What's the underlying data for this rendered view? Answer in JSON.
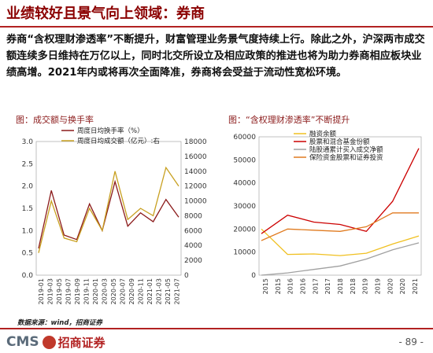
{
  "header": {
    "title": "业绩较好且景气向上领域：券商"
  },
  "body": {
    "text": "券商“含权理财渗透率”不断提升，财富管理业务景气度持续上行。除此之外，沪深两市成交额连续多日维持在万亿以上，同时北交所设立及相应政策的推进也将为助力券商相应板块业绩高增。2021年内或将再次全面降准，券商将会受益于流动性宽松环境。"
  },
  "footer": {
    "source": "数据来源：wind，招商证券",
    "logo_cms": "CMS",
    "logo_cn": "招商证券",
    "page_number": "- 89 -"
  },
  "colors": {
    "title": "#8b0000",
    "rule": "#b22222",
    "dark_red": "#8b1a1a",
    "gold": "#c8a020",
    "red": "#cc0000",
    "orange": "#e07b20",
    "gray": "#a0a0a0",
    "yellow": "#f0c020"
  },
  "chart_data": [
    {
      "type": "line",
      "title": "图：成交额与换手率",
      "x": [
        "2019-01",
        "2019-04",
        "2019-07",
        "2019-10",
        "2020-01",
        "2020-04",
        "2020-07",
        "2020-10",
        "2021-01",
        "2021-04",
        "2021-07",
        "2021-09"
      ],
      "x_ticks": [
        "2019-01",
        "2019-03",
        "2019-05",
        "2019-07",
        "2019-09",
        "2019-11",
        "2020-01",
        "2020-03",
        "2020-05",
        "2020-07",
        "2020-09",
        "2020-11",
        "2021-01",
        "2021-03",
        "2021-05",
        "2021-07"
      ],
      "ylim": [
        0,
        3.0
      ],
      "y_ticks": [
        "0.0",
        "0.5",
        "1.0",
        "1.5",
        "2.0",
        "2.5",
        "3.0"
      ],
      "y2lim": [
        0,
        18000
      ],
      "y2_ticks": [
        "0",
        "2000",
        "4000",
        "6000",
        "8000",
        "10000",
        "12000",
        "14000",
        "16000",
        "18000"
      ],
      "legend_position": "top",
      "series": [
        {
          "name": "周度日均换手率（%）",
          "axis": "left",
          "color": "#8b1a1a",
          "values": [
            0.6,
            1.9,
            0.9,
            0.8,
            1.6,
            1.0,
            2.1,
            1.1,
            1.4,
            1.2,
            1.7,
            1.3
          ]
        },
        {
          "name": "周度日均成交额（亿元）:右",
          "axis": "right",
          "color": "#c8a020",
          "values": [
            3000,
            10000,
            5000,
            4500,
            9000,
            6000,
            14000,
            7500,
            9000,
            8000,
            14500,
            12000
          ]
        }
      ]
    },
    {
      "type": "line",
      "title": "图：“含权理财渗透率”不断提升",
      "x": [
        2015,
        2016,
        2017,
        2018,
        2019,
        2020,
        2021
      ],
      "x_ticks": [
        "2015",
        "2015",
        "2016",
        "2016",
        "2017",
        "2017",
        "2018",
        "2018",
        "2019",
        "2019",
        "2020",
        "2020",
        "2021"
      ],
      "ylim": [
        0,
        60000
      ],
      "y_ticks": [
        "0",
        "10000",
        "20000",
        "30000",
        "40000",
        "50000",
        "60000"
      ],
      "legend_position": "top",
      "series": [
        {
          "name": "融资余额",
          "color": "#f0c020",
          "values": [
            20000,
            9000,
            9200,
            8500,
            9500,
            13500,
            17000
          ]
        },
        {
          "name": "股票和混合基金份额",
          "color": "#cc0000",
          "values": [
            18000,
            26000,
            23000,
            22000,
            19000,
            32000,
            55000
          ]
        },
        {
          "name": "陆股通累计买入成交净额",
          "color": "#a0a0a0",
          "values": [
            0,
            1000,
            2500,
            4000,
            7000,
            11000,
            14000
          ]
        },
        {
          "name": "保险资金股票和证券投资",
          "color": "#e07b20",
          "values": [
            15000,
            20000,
            19500,
            19000,
            21000,
            27000,
            27000
          ]
        }
      ]
    }
  ]
}
